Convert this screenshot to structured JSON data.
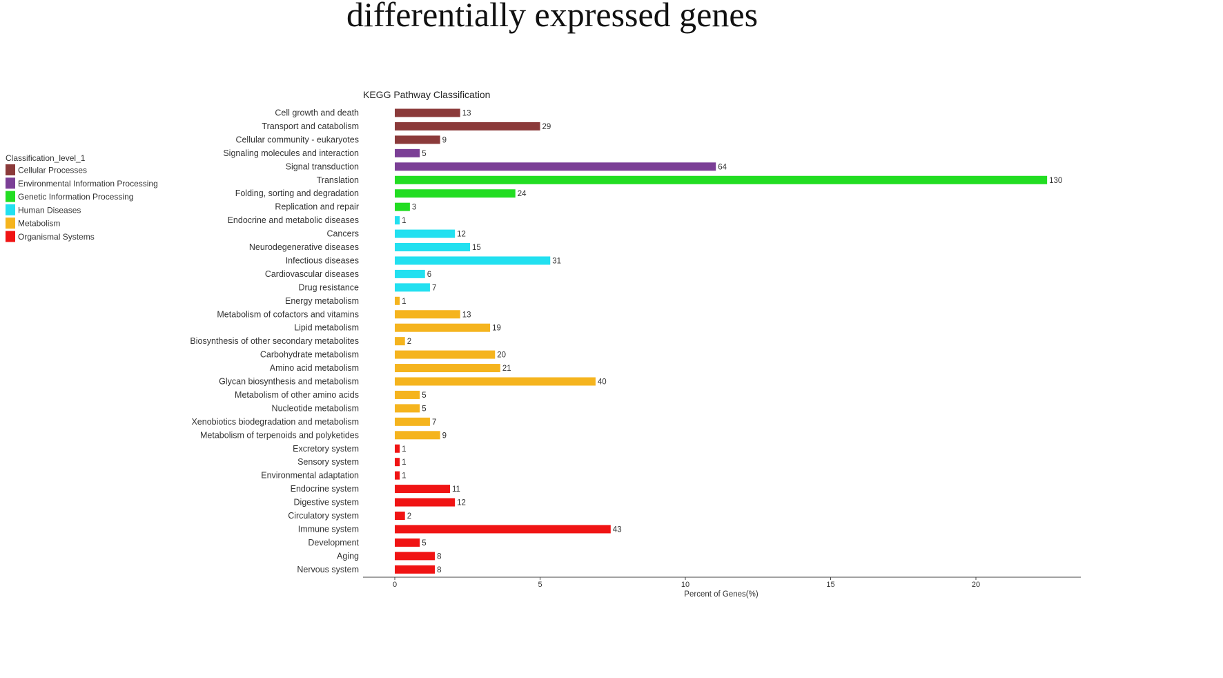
{
  "page_title": "differentially expressed genes",
  "chart_data": {
    "type": "bar",
    "orientation": "horizontal",
    "title": "KEGG Pathway Classification",
    "xlabel": "Percent of Genes(%)",
    "ylabel": "",
    "xlim": [
      0,
      23.5
    ],
    "xticks": [
      0,
      5,
      10,
      15,
      20
    ],
    "legend": {
      "title": "Classification_level_1",
      "position": "left",
      "entries": [
        {
          "name": "Cellular Processes",
          "color": "#8B3A3A"
        },
        {
          "name": "Environmental Information Processing",
          "color": "#7B3F96"
        },
        {
          "name": "Genetic Information Processing",
          "color": "#22DD22"
        },
        {
          "name": "Human Diseases",
          "color": "#22E0F0"
        },
        {
          "name": "Metabolism",
          "color": "#F5B41E"
        },
        {
          "name": "Organismal Systems",
          "color": "#F01414"
        }
      ]
    },
    "bars": [
      {
        "category": "Cell growth and death",
        "group": "Cellular Processes",
        "count": 13,
        "percent": 2.25
      },
      {
        "category": "Transport and catabolism",
        "group": "Cellular Processes",
        "count": 29,
        "percent": 5.0
      },
      {
        "category": "Cellular community - eukaryotes",
        "group": "Cellular Processes",
        "count": 9,
        "percent": 1.56
      },
      {
        "category": "Signaling molecules and interaction",
        "group": "Environmental Information Processing",
        "count": 5,
        "percent": 0.86
      },
      {
        "category": "Signal transduction",
        "group": "Environmental Information Processing",
        "count": 64,
        "percent": 11.05
      },
      {
        "category": "Translation",
        "group": "Genetic Information Processing",
        "count": 130,
        "percent": 22.45
      },
      {
        "category": "Folding, sorting and degradation",
        "group": "Genetic Information Processing",
        "count": 24,
        "percent": 4.15
      },
      {
        "category": "Replication and repair",
        "group": "Genetic Information Processing",
        "count": 3,
        "percent": 0.52
      },
      {
        "category": "Endocrine and metabolic diseases",
        "group": "Human Diseases",
        "count": 1,
        "percent": 0.17
      },
      {
        "category": "Cancers",
        "group": "Human Diseases",
        "count": 12,
        "percent": 2.07
      },
      {
        "category": "Neurodegenerative diseases",
        "group": "Human Diseases",
        "count": 15,
        "percent": 2.59
      },
      {
        "category": "Infectious diseases",
        "group": "Human Diseases",
        "count": 31,
        "percent": 5.35
      },
      {
        "category": "Cardiovascular diseases",
        "group": "Human Diseases",
        "count": 6,
        "percent": 1.04
      },
      {
        "category": "Drug resistance",
        "group": "Human Diseases",
        "count": 7,
        "percent": 1.21
      },
      {
        "category": "Energy metabolism",
        "group": "Metabolism",
        "count": 1,
        "percent": 0.17
      },
      {
        "category": "Metabolism of cofactors and vitamins",
        "group": "Metabolism",
        "count": 13,
        "percent": 2.25
      },
      {
        "category": "Lipid metabolism",
        "group": "Metabolism",
        "count": 19,
        "percent": 3.28
      },
      {
        "category": "Biosynthesis of other secondary metabolites",
        "group": "Metabolism",
        "count": 2,
        "percent": 0.35
      },
      {
        "category": "Carbohydrate metabolism",
        "group": "Metabolism",
        "count": 20,
        "percent": 3.45
      },
      {
        "category": "Amino acid metabolism",
        "group": "Metabolism",
        "count": 21,
        "percent": 3.63
      },
      {
        "category": "Glycan biosynthesis and metabolism",
        "group": "Metabolism",
        "count": 40,
        "percent": 6.91
      },
      {
        "category": "Metabolism of other amino acids",
        "group": "Metabolism",
        "count": 5,
        "percent": 0.86
      },
      {
        "category": "Nucleotide metabolism",
        "group": "Metabolism",
        "count": 5,
        "percent": 0.86
      },
      {
        "category": "Xenobiotics biodegradation and metabolism",
        "group": "Metabolism",
        "count": 7,
        "percent": 1.21
      },
      {
        "category": "Metabolism of terpenoids and polyketides",
        "group": "Metabolism",
        "count": 9,
        "percent": 1.56
      },
      {
        "category": "Excretory system",
        "group": "Organismal Systems",
        "count": 1,
        "percent": 0.17
      },
      {
        "category": "Sensory system",
        "group": "Organismal Systems",
        "count": 1,
        "percent": 0.17
      },
      {
        "category": "Environmental adaptation",
        "group": "Organismal Systems",
        "count": 1,
        "percent": 0.17
      },
      {
        "category": "Endocrine system",
        "group": "Organismal Systems",
        "count": 11,
        "percent": 1.9
      },
      {
        "category": "Digestive system",
        "group": "Organismal Systems",
        "count": 12,
        "percent": 2.07
      },
      {
        "category": "Circulatory system",
        "group": "Organismal Systems",
        "count": 2,
        "percent": 0.35
      },
      {
        "category": "Immune system",
        "group": "Organismal Systems",
        "count": 43,
        "percent": 7.43
      },
      {
        "category": "Development",
        "group": "Organismal Systems",
        "count": 5,
        "percent": 0.86
      },
      {
        "category": "Aging",
        "group": "Organismal Systems",
        "count": 8,
        "percent": 1.38
      },
      {
        "category": "Nervous system",
        "group": "Organismal Systems",
        "count": 8,
        "percent": 1.38
      }
    ]
  }
}
